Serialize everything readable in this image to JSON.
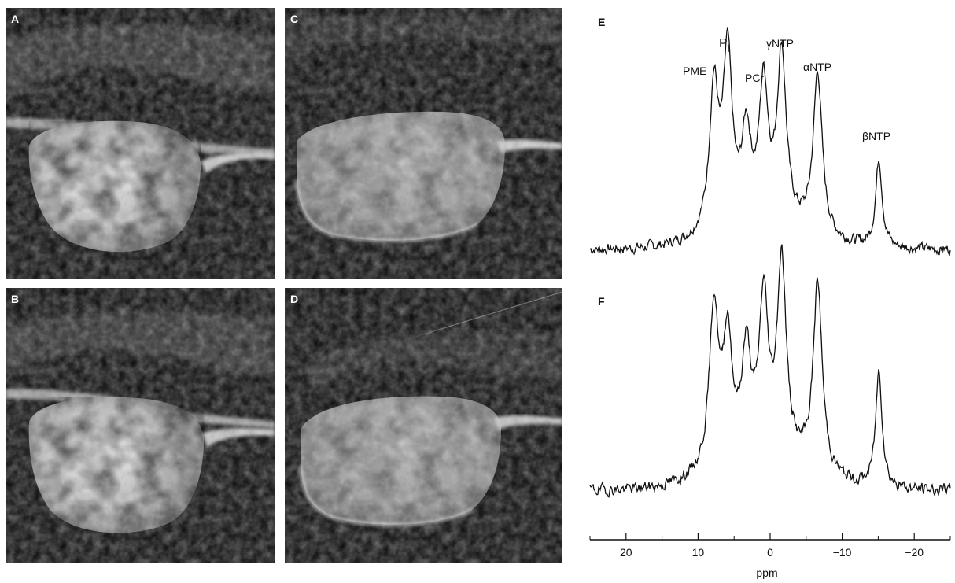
{
  "panels": {
    "a": {
      "label": "A"
    },
    "b": {
      "label": "B"
    },
    "c": {
      "label": "C"
    },
    "d": {
      "label": "D"
    },
    "e": {
      "label": "E"
    },
    "f": {
      "label": "F"
    }
  },
  "colors": {
    "line": "#111111",
    "image_bg": "#050505"
  },
  "chart_data": [
    {
      "type": "line",
      "panel": "E",
      "xlabel": "ppm",
      "xlim": [
        25,
        -25
      ],
      "x_reversed": true,
      "peaks": [
        {
          "name": "PME",
          "ppm": 7.8,
          "height": 0.72
        },
        {
          "name": "Pi",
          "ppm": 5.9,
          "height": 0.86
        },
        {
          "name": "",
          "ppm": 3.3,
          "height": 0.44
        },
        {
          "name": "PCr",
          "ppm": 0.9,
          "height": 0.68
        },
        {
          "name": "γNTP",
          "ppm": -1.6,
          "height": 0.86
        },
        {
          "name": "αNTP",
          "ppm": -6.6,
          "height": 0.82
        },
        {
          "name": "βNTP",
          "ppm": -15.1,
          "height": 0.45
        }
      ],
      "annotations": [
        "PME",
        "Pi",
        "PCr",
        "γNTP",
        "αNTP",
        "βNTP"
      ]
    },
    {
      "type": "line",
      "panel": "F",
      "xlabel": "ppm",
      "xlim": [
        25,
        -25
      ],
      "x_reversed": true,
      "peaks": [
        {
          "name": "PME",
          "ppm": 7.8,
          "height": 0.76
        },
        {
          "name": "Pi",
          "ppm": 5.9,
          "height": 0.58
        },
        {
          "name": "",
          "ppm": 3.3,
          "height": 0.48
        },
        {
          "name": "PCr",
          "ppm": 0.9,
          "height": 0.72
        },
        {
          "name": "γNTP",
          "ppm": -1.6,
          "height": 0.92
        },
        {
          "name": "αNTP",
          "ppm": -6.6,
          "height": 0.89
        },
        {
          "name": "βNTP",
          "ppm": -15.1,
          "height": 0.55
        }
      ]
    }
  ],
  "axis": {
    "label": "ppm",
    "ticks": [
      {
        "value": 20,
        "label": "20"
      },
      {
        "value": 10,
        "label": "10"
      },
      {
        "value": 0,
        "label": "0"
      },
      {
        "value": -10,
        "label": "−10"
      },
      {
        "value": -20,
        "label": "−20"
      }
    ],
    "minor_ticks": [
      25,
      15,
      5,
      -5,
      -15,
      -25
    ]
  },
  "peak_labels": {
    "pme": "PME",
    "pi_main": "P",
    "pi_sub": "i",
    "pcr": "PCr",
    "gntp": "γNTP",
    "antp": "αNTP",
    "bntp": "βNTP"
  }
}
